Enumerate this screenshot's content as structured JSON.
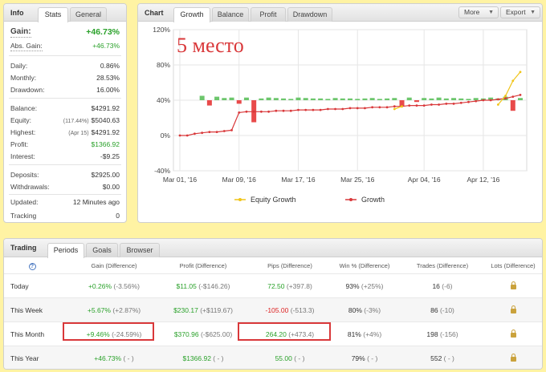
{
  "info": {
    "title": "Info",
    "tabs": [
      "Stats",
      "General"
    ],
    "gain": {
      "label": "Gain:",
      "value": "+46.73%"
    },
    "abs_gain": {
      "label": "Abs. Gain:",
      "value": "+46.73%"
    },
    "daily": {
      "label": "Daily:",
      "value": "0.86%"
    },
    "monthly": {
      "label": "Monthly:",
      "value": "28.53%"
    },
    "drawdown": {
      "label": "Drawdown:",
      "value": "16.00%"
    },
    "balance": {
      "label": "Balance:",
      "value": "$4291.92"
    },
    "equity": {
      "label": "Equity:",
      "note": "(117.44%)",
      "value": "$5040.63"
    },
    "highest": {
      "label": "Highest:",
      "note": "(Apr 15)",
      "value": "$4291.92"
    },
    "profit": {
      "label": "Profit:",
      "value": "$1366.92"
    },
    "interest": {
      "label": "Interest:",
      "value": "-$9.25"
    },
    "deposits": {
      "label": "Deposits:",
      "value": "$2925.00"
    },
    "withdrawals": {
      "label": "Withdrawals:",
      "value": "$0.00"
    },
    "updated": {
      "label": "Updated:",
      "value": "12 Minutes ago"
    },
    "tracking": {
      "label": "Tracking",
      "value": "0"
    }
  },
  "chart_panel": {
    "title": "Chart",
    "tabs": [
      "Growth",
      "Balance",
      "Profit",
      "Drawdown"
    ],
    "more_label": "More",
    "export_label": "Export",
    "overlay_text": "5 место",
    "legend": [
      "Equity Growth",
      "Growth"
    ],
    "colors": {
      "growth": "#d9383a",
      "equity": "#f0c419",
      "bar_pos": "#6cc66c",
      "bar_neg": "#e84a4a"
    }
  },
  "chart_data": {
    "type": "line",
    "title": "",
    "xlabel": "",
    "ylabel": "",
    "ylim": [
      -40,
      120
    ],
    "yticks": [
      "120%",
      "80%",
      "40%",
      "0%",
      "-40%"
    ],
    "ytick_values": [
      120,
      80,
      40,
      0,
      -40
    ],
    "xticks": [
      "Mar 01, '16",
      "Mar 09, '16",
      "Mar 17, '16",
      "Mar 25, '16",
      "Apr 04, '16",
      "Apr 12, '16"
    ],
    "xtick_index": [
      0,
      8,
      16,
      24,
      33,
      41
    ],
    "n_points": 47,
    "series": [
      {
        "name": "Growth",
        "values": [
          0,
          0,
          2,
          3,
          4,
          4,
          5,
          6,
          26,
          27,
          27,
          27,
          27,
          28,
          28,
          28,
          29,
          29,
          29,
          29,
          30,
          30,
          30,
          31,
          31,
          31,
          32,
          32,
          32,
          33,
          33,
          34,
          34,
          34,
          35,
          35,
          36,
          36,
          37,
          38,
          39,
          40,
          40,
          41,
          42,
          44,
          46
        ]
      },
      {
        "name": "Equity Growth",
        "values": [
          null,
          null,
          null,
          null,
          null,
          null,
          null,
          null,
          null,
          null,
          null,
          null,
          null,
          null,
          null,
          null,
          null,
          null,
          null,
          null,
          null,
          null,
          null,
          null,
          null,
          null,
          null,
          null,
          null,
          30,
          33,
          null,
          null,
          null,
          null,
          null,
          null,
          null,
          null,
          null,
          null,
          null,
          null,
          35,
          45,
          62,
          72
        ]
      }
    ],
    "bars": [
      0,
      0,
      0,
      10,
      -12,
      8,
      5,
      6,
      -8,
      6,
      -50,
      4,
      6,
      5,
      4,
      3,
      6,
      5,
      4,
      4,
      3,
      5,
      4,
      4,
      3,
      4,
      5,
      3,
      4,
      5,
      -14,
      6,
      -4,
      5,
      4,
      6,
      4,
      5,
      4,
      3,
      5,
      4,
      6,
      4,
      8,
      -24,
      5
    ]
  },
  "trading": {
    "title": "Trading",
    "tabs": [
      "Periods",
      "Goals",
      "Browser"
    ],
    "help_glyph": "?",
    "columns": [
      "Gain (Difference)",
      "Profit (Difference)",
      "Pips (Difference)",
      "Win % (Difference)",
      "Trades (Difference)",
      "Lots (Difference)"
    ],
    "rows": [
      {
        "label": "Today",
        "gain": "+0.26%",
        "gain_diff": "(-3.56%)",
        "profit": "$11.05",
        "profit_diff": "(-$146.26)",
        "pips": "72.50",
        "pips_diff": "(+397.8)",
        "win": "93%",
        "win_diff": "(+25%)",
        "trades": "16",
        "trades_diff": "(-6)"
      },
      {
        "label": "This Week",
        "gain": "+5.67%",
        "gain_diff": "(+2.87%)",
        "profit": "$230.17",
        "profit_diff": "(+$119.67)",
        "pips": "-105.00",
        "pips_diff": "(-513.3)",
        "win": "80%",
        "win_diff": "(-3%)",
        "trades": "86",
        "trades_diff": "(-10)"
      },
      {
        "label": "This Month",
        "gain": "+9.46%",
        "gain_diff": "(-24.59%)",
        "profit": "$370.96",
        "profit_diff": "(-$625.00)",
        "pips": "264.20",
        "pips_diff": "(+473.4)",
        "win": "81%",
        "win_diff": "(+4%)",
        "trades": "198",
        "trades_diff": "(-156)"
      },
      {
        "label": "This Year",
        "gain": "+46.73%",
        "gain_diff": "( - )",
        "profit": "$1366.92",
        "profit_diff": "( - )",
        "pips": "55.00",
        "pips_diff": "( - )",
        "win": "79%",
        "win_diff": "( - )",
        "trades": "552",
        "trades_diff": "( - )"
      }
    ]
  }
}
